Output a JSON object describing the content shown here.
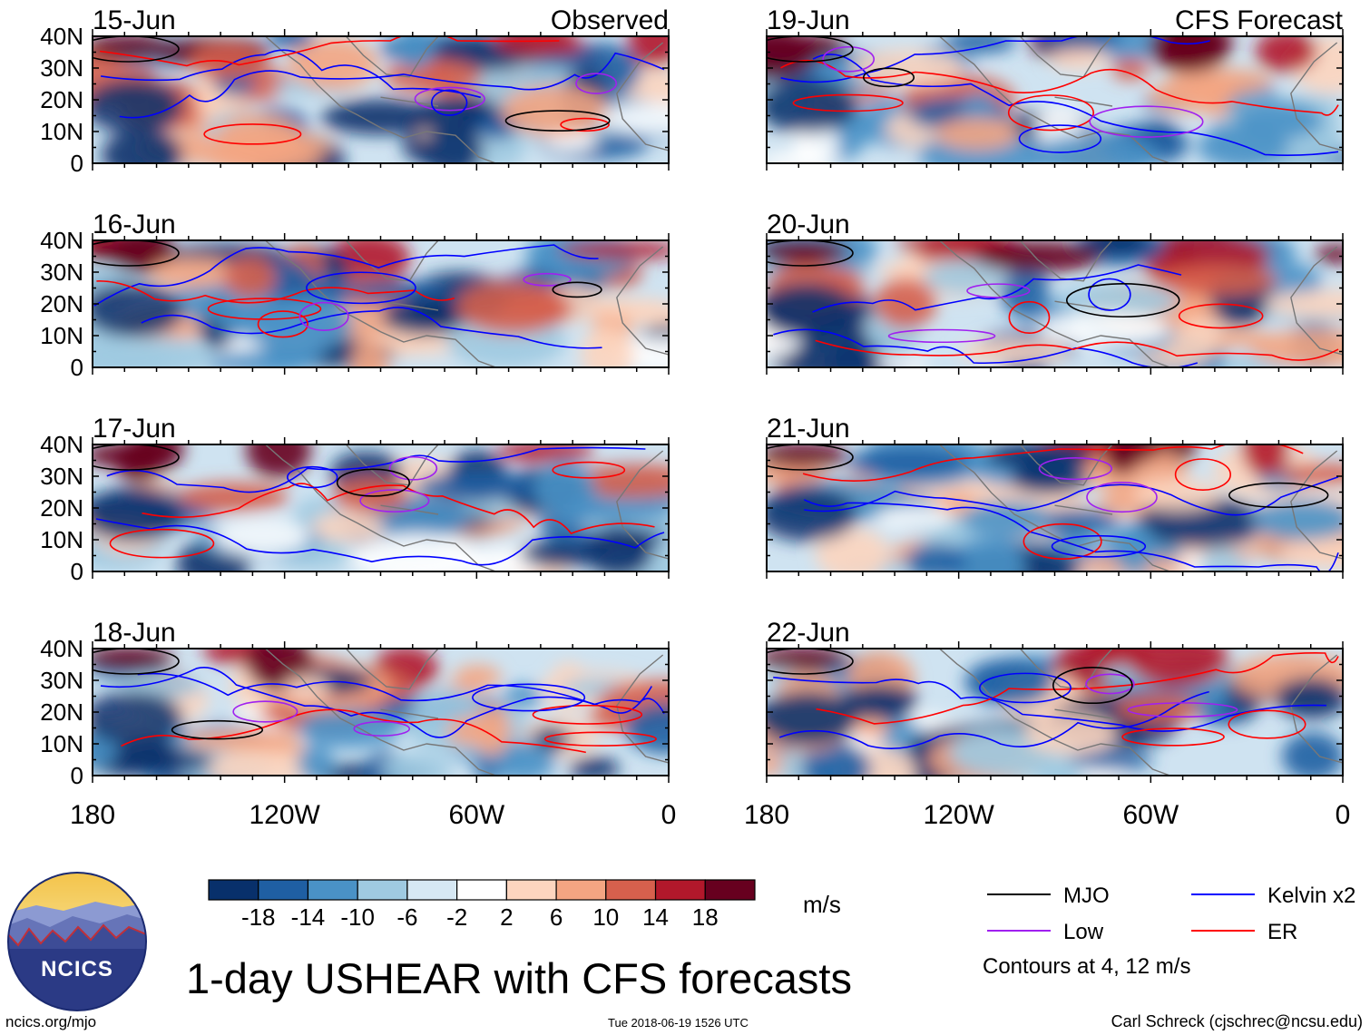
{
  "chart_data": {
    "type": "heatmap",
    "title": "1-day USHEAR with CFS forecasts",
    "variable": "USHEAR",
    "units": "m/s",
    "latitude_ticks": [
      "40N",
      "30N",
      "20N",
      "10N",
      "0"
    ],
    "longitude_ticks": [
      "180",
      "120W",
      "60W",
      "0"
    ],
    "columns": [
      {
        "label": "Observed",
        "dates": [
          "15-Jun",
          "16-Jun",
          "17-Jun",
          "18-Jun"
        ]
      },
      {
        "label": "CFS Forecast",
        "dates": [
          "19-Jun",
          "20-Jun",
          "21-Jun",
          "22-Jun"
        ]
      }
    ],
    "colorbar": {
      "tick_labels": [
        "-18",
        "-14",
        "-10",
        "-6",
        "-2",
        "2",
        "6",
        "10",
        "14",
        "18"
      ],
      "colors": [
        "#08306b",
        "#1f5fa3",
        "#4a92c6",
        "#9fcae1",
        "#d6e8f4",
        "#ffffff",
        "#fdd5bf",
        "#f4a582",
        "#d6604d",
        "#b2182b",
        "#67001f"
      ]
    },
    "contour_legend": [
      {
        "name": "MJO",
        "color": "#000000"
      },
      {
        "name": "Kelvin x2",
        "color": "#0000ff"
      },
      {
        "name": "Low",
        "color": "#a020f0"
      },
      {
        "name": "ER",
        "color": "#ff0000"
      }
    ],
    "contour_note": "Contours at 4, 12 m/s"
  },
  "footer": {
    "logo_text": "NCICS",
    "site": "ncics.org/mjo",
    "timestamp": "Tue 2018-06-19 1526 UTC",
    "author": "Carl Schreck (cjschrec@ncsu.edu)"
  }
}
